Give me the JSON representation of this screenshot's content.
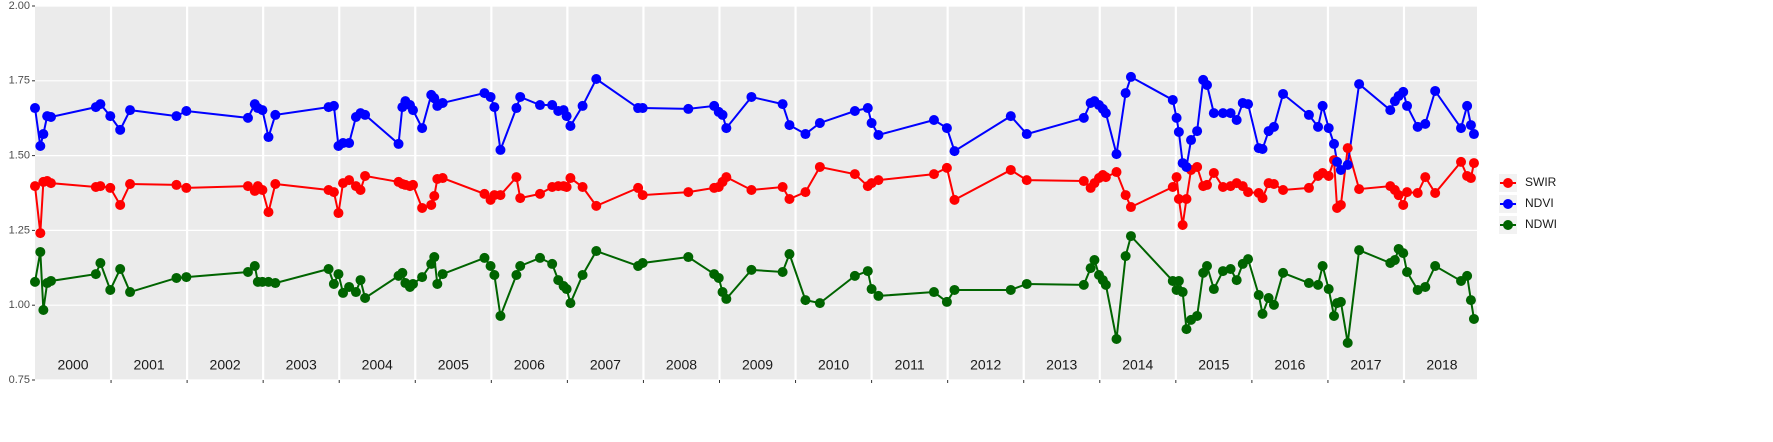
{
  "chart_data": {
    "type": "line",
    "x": [
      2000.0,
      2000.07,
      2000.11,
      2000.16,
      2000.21,
      2000.8,
      2000.86,
      2000.99,
      2001.12,
      2001.25,
      2001.86,
      2001.99,
      2002.8,
      2002.89,
      2002.93,
      2002.99,
      2003.07,
      2003.16,
      2003.86,
      2003.93,
      2003.99,
      2004.05,
      2004.13,
      2004.22,
      2004.28,
      2004.34,
      2004.78,
      2004.83,
      2004.87,
      2004.93,
      2004.97,
      2005.09,
      2005.21,
      2005.25,
      2005.29,
      2005.36,
      2005.91,
      2005.99,
      2006.04,
      2006.12,
      2006.33,
      2006.38,
      2006.64,
      2006.8,
      2006.88,
      2006.95,
      2006.99,
      2007.04,
      2007.2,
      2007.38,
      2007.93,
      2007.99,
      2008.59,
      2008.93,
      2008.99,
      2009.04,
      2009.09,
      2009.42,
      2009.83,
      2009.92,
      2010.13,
      2010.32,
      2010.78,
      2010.95,
      2011.0,
      2011.09,
      2011.82,
      2011.99,
      2012.09,
      2012.83,
      2013.04,
      2013.79,
      2013.88,
      2013.93,
      2013.99,
      2014.04,
      2014.08,
      2014.22,
      2014.34,
      2014.41,
      2014.96,
      2015.01,
      2015.04,
      2015.09,
      2015.14,
      2015.2,
      2015.28,
      2015.36,
      2015.41,
      2015.5,
      2015.62,
      2015.72,
      2015.8,
      2015.88,
      2015.95,
      2016.09,
      2016.14,
      2016.22,
      2016.29,
      2016.41,
      2016.75,
      2016.87,
      2016.93,
      2017.01,
      2017.08,
      2017.12,
      2017.17,
      2017.26,
      2017.41,
      2017.82,
      2017.88,
      2017.93,
      2017.99,
      2018.04,
      2018.18,
      2018.28,
      2018.41,
      2018.75,
      2018.83,
      2018.88,
      2018.92
    ],
    "series": [
      {
        "name": "SWIR",
        "color": "#ff0000",
        "values": [
          1.398,
          1.241,
          1.412,
          1.415,
          1.408,
          1.395,
          1.398,
          1.392,
          1.335,
          1.405,
          1.402,
          1.392,
          1.398,
          1.382,
          1.398,
          1.385,
          1.311,
          1.405,
          1.385,
          1.378,
          1.308,
          1.408,
          1.418,
          1.398,
          1.385,
          1.432,
          1.412,
          1.405,
          1.402,
          1.398,
          1.402,
          1.325,
          1.335,
          1.365,
          1.422,
          1.425,
          1.372,
          1.352,
          1.368,
          1.368,
          1.428,
          1.358,
          1.372,
          1.395,
          1.398,
          1.398,
          1.395,
          1.425,
          1.395,
          1.332,
          1.392,
          1.368,
          1.378,
          1.392,
          1.395,
          1.412,
          1.428,
          1.385,
          1.395,
          1.355,
          1.378,
          1.462,
          1.438,
          1.398,
          1.408,
          1.418,
          1.438,
          1.459,
          1.352,
          1.452,
          1.418,
          1.415,
          1.392,
          1.408,
          1.425,
          1.435,
          1.428,
          1.445,
          1.368,
          1.328,
          1.395,
          1.428,
          1.355,
          1.268,
          1.355,
          1.452,
          1.462,
          1.398,
          1.402,
          1.442,
          1.395,
          1.398,
          1.408,
          1.398,
          1.378,
          1.375,
          1.358,
          1.408,
          1.405,
          1.385,
          1.392,
          1.432,
          1.442,
          1.432,
          1.485,
          1.325,
          1.335,
          1.525,
          1.388,
          1.398,
          1.385,
          1.368,
          1.335,
          1.378,
          1.375,
          1.428,
          1.375,
          1.479,
          1.432,
          1.425,
          1.475
        ]
      },
      {
        "name": "NDVI",
        "color": "#0000ff",
        "values": [
          1.659,
          1.532,
          1.572,
          1.632,
          1.629,
          1.662,
          1.672,
          1.632,
          1.586,
          1.652,
          1.632,
          1.649,
          1.626,
          1.672,
          1.659,
          1.652,
          1.562,
          1.636,
          1.662,
          1.666,
          1.532,
          1.542,
          1.542,
          1.629,
          1.642,
          1.636,
          1.539,
          1.662,
          1.682,
          1.669,
          1.652,
          1.592,
          1.703,
          1.692,
          1.666,
          1.676,
          1.709,
          1.696,
          1.662,
          1.519,
          1.659,
          1.696,
          1.669,
          1.669,
          1.649,
          1.652,
          1.632,
          1.599,
          1.666,
          1.756,
          1.659,
          1.659,
          1.656,
          1.666,
          1.646,
          1.636,
          1.592,
          1.696,
          1.672,
          1.602,
          1.572,
          1.609,
          1.649,
          1.659,
          1.609,
          1.569,
          1.619,
          1.592,
          1.515,
          1.632,
          1.572,
          1.626,
          1.676,
          1.682,
          1.669,
          1.656,
          1.642,
          1.505,
          1.709,
          1.763,
          1.686,
          1.626,
          1.579,
          1.475,
          1.462,
          1.552,
          1.582,
          1.753,
          1.736,
          1.642,
          1.642,
          1.642,
          1.619,
          1.676,
          1.672,
          1.525,
          1.522,
          1.582,
          1.596,
          1.706,
          1.636,
          1.596,
          1.666,
          1.592,
          1.539,
          1.479,
          1.452,
          1.469,
          1.739,
          1.652,
          1.682,
          1.699,
          1.713,
          1.666,
          1.596,
          1.606,
          1.716,
          1.592,
          1.666,
          1.602,
          1.572
        ]
      },
      {
        "name": "NDWI",
        "color": "#006400",
        "values": [
          1.078,
          1.178,
          0.984,
          1.074,
          1.081,
          1.104,
          1.141,
          1.051,
          1.121,
          1.044,
          1.091,
          1.094,
          1.111,
          1.131,
          1.078,
          1.078,
          1.078,
          1.074,
          1.121,
          1.071,
          1.104,
          1.041,
          1.061,
          1.044,
          1.084,
          1.024,
          1.098,
          1.108,
          1.074,
          1.061,
          1.071,
          1.094,
          1.138,
          1.161,
          1.071,
          1.104,
          1.158,
          1.131,
          1.101,
          0.964,
          1.101,
          1.131,
          1.158,
          1.138,
          1.084,
          1.064,
          1.054,
          1.007,
          1.101,
          1.181,
          1.131,
          1.141,
          1.161,
          1.104,
          1.091,
          1.044,
          1.021,
          1.118,
          1.111,
          1.171,
          1.017,
          1.007,
          1.098,
          1.114,
          1.054,
          1.031,
          1.044,
          1.011,
          1.051,
          1.051,
          1.071,
          1.068,
          1.124,
          1.151,
          1.101,
          1.084,
          1.068,
          0.887,
          1.164,
          1.231,
          1.081,
          1.051,
          1.081,
          1.044,
          0.92,
          0.951,
          0.964,
          1.108,
          1.131,
          1.054,
          1.114,
          1.121,
          1.084,
          1.138,
          1.154,
          1.034,
          0.971,
          1.024,
          1.001,
          1.108,
          1.074,
          1.068,
          1.131,
          1.054,
          0.964,
          1.007,
          1.011,
          0.874,
          1.184,
          1.141,
          1.151,
          1.188,
          1.174,
          1.111,
          1.051,
          1.061,
          1.131,
          1.081,
          1.098,
          1.017,
          0.954
        ]
      }
    ],
    "xlim": [
      2000,
      2018.96
    ],
    "xticks": [
      {
        "value": 2000.5,
        "label": "2000"
      },
      {
        "value": 2001.5,
        "label": "2001"
      },
      {
        "value": 2002.5,
        "label": "2002"
      },
      {
        "value": 2003.5,
        "label": "2003"
      },
      {
        "value": 2004.5,
        "label": "2004"
      },
      {
        "value": 2005.5,
        "label": "2005"
      },
      {
        "value": 2006.5,
        "label": "2006"
      },
      {
        "value": 2007.5,
        "label": "2007"
      },
      {
        "value": 2008.5,
        "label": "2008"
      },
      {
        "value": 2009.5,
        "label": "2009"
      },
      {
        "value": 2010.5,
        "label": "2010"
      },
      {
        "value": 2011.5,
        "label": "2011"
      },
      {
        "value": 2012.5,
        "label": "2012"
      },
      {
        "value": 2013.5,
        "label": "2013"
      },
      {
        "value": 2014.5,
        "label": "2014"
      },
      {
        "value": 2015.5,
        "label": "2015"
      },
      {
        "value": 2016.5,
        "label": "2016"
      },
      {
        "value": 2017.5,
        "label": "2017"
      },
      {
        "value": 2018.5,
        "label": "2018"
      }
    ],
    "xgrid": [
      2001,
      2002,
      2003,
      2004,
      2005,
      2006,
      2007,
      2008,
      2009,
      2010,
      2011,
      2012,
      2013,
      2014,
      2015,
      2016,
      2017,
      2018
    ],
    "ylim": [
      0.75,
      2.0
    ],
    "yticks": [
      0.75,
      {
        "value": 1.0,
        "label": "1.00"
      },
      1.25,
      {
        "value": 1.5,
        "label": "1.50"
      },
      1.75,
      {
        "value": 2.0,
        "label": "2.00"
      }
    ],
    "grid": true,
    "legend": "right"
  }
}
